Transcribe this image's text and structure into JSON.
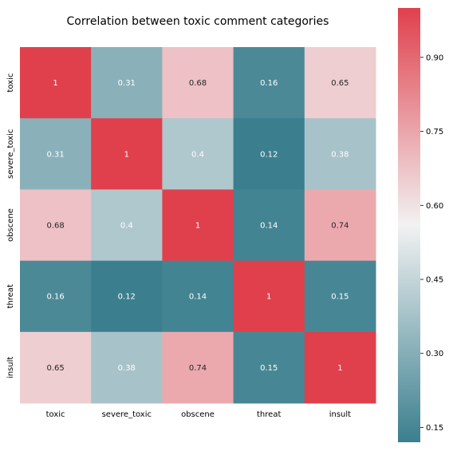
{
  "chart_data": {
    "type": "heatmap",
    "title": "Correlation between toxic comment categories",
    "x_categories": [
      "toxic",
      "severe_toxic",
      "obscene",
      "threat",
      "insult"
    ],
    "y_categories": [
      "toxic",
      "severe_toxic",
      "obscene",
      "threat",
      "insult"
    ],
    "values": [
      [
        1,
        0.31,
        0.68,
        0.16,
        0.65
      ],
      [
        0.31,
        1,
        0.4,
        0.12,
        0.38
      ],
      [
        0.68,
        0.4,
        1,
        0.14,
        0.74
      ],
      [
        0.16,
        0.12,
        0.14,
        1,
        0.15
      ],
      [
        0.65,
        0.38,
        0.74,
        0.15,
        1
      ]
    ],
    "value_labels": [
      [
        "1",
        "0.31",
        "0.68",
        "0.16",
        "0.65"
      ],
      [
        "0.31",
        "1",
        "0.4",
        "0.12",
        "0.38"
      ],
      [
        "0.68",
        "0.4",
        "1",
        "0.14",
        "0.74"
      ],
      [
        "0.16",
        "0.12",
        "0.14",
        "1",
        "0.15"
      ],
      [
        "0.65",
        "0.38",
        "0.74",
        "0.15",
        "1"
      ]
    ],
    "colorbar": {
      "range": [
        0.12,
        1
      ],
      "ticks": [
        0.15,
        0.3,
        0.45,
        0.6,
        0.75,
        0.9
      ],
      "tick_labels": [
        "0.15",
        "0.30",
        "0.45",
        "0.60",
        "0.75",
        "0.90"
      ]
    },
    "colormap": {
      "low": "#3b7f8e",
      "mid": "#f2f2f2",
      "high": "#e0404c"
    }
  }
}
